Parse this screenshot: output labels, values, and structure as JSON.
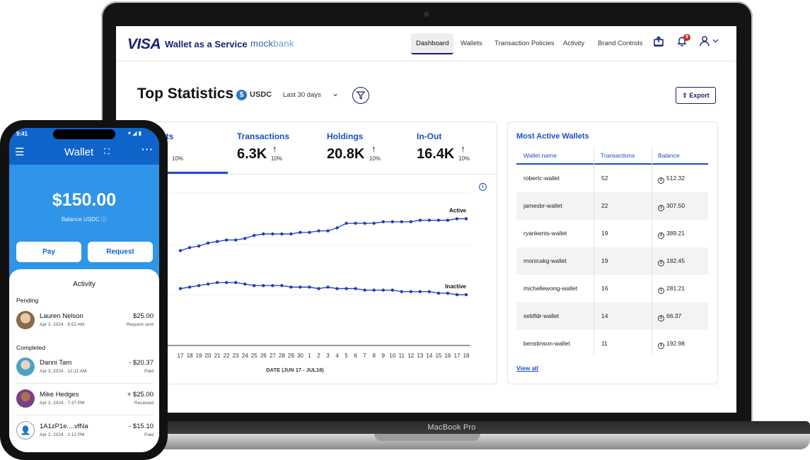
{
  "laptop": {
    "label": "MacBook Pro"
  },
  "header": {
    "brand": "VISA",
    "product": "Wallet as a Service",
    "partner_prefix": "mock",
    "partner_suffix": "bank",
    "nav": [
      "Dashboard",
      "Wallets",
      "Transaction Policies",
      "Activity",
      "Brand Controls"
    ],
    "notification_count": "9"
  },
  "top": {
    "title": "Top Statistics",
    "currency": "USDC",
    "range": "Last 30 days",
    "export_label": "Export"
  },
  "stats": {
    "first_label_partial": "ets",
    "first_pct": "10%",
    "items": [
      {
        "label": "Transactions",
        "value": "6.3K",
        "pct": "10%"
      },
      {
        "label": "Holdings",
        "value": "20.8K",
        "pct": "10%"
      },
      {
        "label": "In-Out",
        "value": "16.4K",
        "pct": "10%"
      }
    ]
  },
  "chart_data": {
    "type": "line",
    "title": "",
    "xlabel": "DATE (JUN 17 - JUL18)",
    "ylabel": "",
    "categories": [
      "17",
      "18",
      "19",
      "20",
      "21",
      "22",
      "23",
      "24",
      "25",
      "26",
      "27",
      "28",
      "29",
      "30",
      "1",
      "2",
      "3",
      "4",
      "5",
      "6",
      "7",
      "8",
      "9",
      "10",
      "11",
      "12",
      "13",
      "14",
      "15",
      "16",
      "17",
      "18"
    ],
    "series": [
      {
        "name": "Active",
        "values": [
          62,
          64,
          65,
          67,
          68,
          69,
          69,
          70,
          72,
          73,
          73,
          73,
          73,
          74,
          74,
          75,
          75,
          77,
          80,
          80,
          80,
          80,
          81,
          81,
          81,
          81,
          82,
          82,
          82,
          82,
          83,
          83
        ]
      },
      {
        "name": "Inactive",
        "values": [
          37,
          38,
          39,
          40,
          41,
          41,
          41,
          40,
          39,
          39,
          39,
          39,
          38,
          38,
          38,
          37,
          38,
          37,
          37,
          37,
          36,
          36,
          36,
          36,
          35,
          35,
          35,
          35,
          34,
          34,
          33,
          33
        ]
      }
    ],
    "ylim": [
      0,
      100
    ],
    "grid": true
  },
  "most_active": {
    "title": "Most Active Wallets",
    "headers": [
      "Wallet name",
      "Transactions",
      "Balance"
    ],
    "rows": [
      [
        "robertc-wallet",
        "52",
        "512.32"
      ],
      [
        "jamesbr-wallet",
        "22",
        "307.50"
      ],
      [
        "ryankents-wallet",
        "19",
        "389.21"
      ],
      [
        "monicakg-wallet",
        "19",
        "182.45"
      ],
      [
        "michellewong-wallet",
        "16",
        "281.21"
      ],
      [
        "sebfldr-wallet",
        "14",
        "66.37"
      ],
      [
        "benstinson-wallet",
        "11",
        "192.98"
      ]
    ],
    "view_all": "View all"
  },
  "phone": {
    "time": "9:41",
    "title": "Wallet",
    "balance": "$150.00",
    "balance_label": "Balance USDC",
    "pay": "Pay",
    "request": "Request",
    "activity_title": "Activity",
    "pending_label": "Pending",
    "completed_label": "Completed",
    "pending": [
      {
        "name": "Lauren Nelson",
        "date": "Apr 3, 2024 · 8:52 AM",
        "amount": "$25.00",
        "status": "Request sent"
      }
    ],
    "completed": [
      {
        "name": "Danni Tam",
        "date": "Apr 3, 2024 · 12:11 AM",
        "amount": "- $20.37",
        "status": "Paid"
      },
      {
        "name": "Mike Hedges",
        "date": "Apr 3, 2024 · 7:37 PM",
        "amount": "+ $25.00",
        "status": "Received"
      },
      {
        "name": "1A1zP1e....vfNa",
        "date": "Apr 2, 2024 · 2:12 PM",
        "amount": "- $15.10",
        "status": "Paid"
      }
    ]
  }
}
